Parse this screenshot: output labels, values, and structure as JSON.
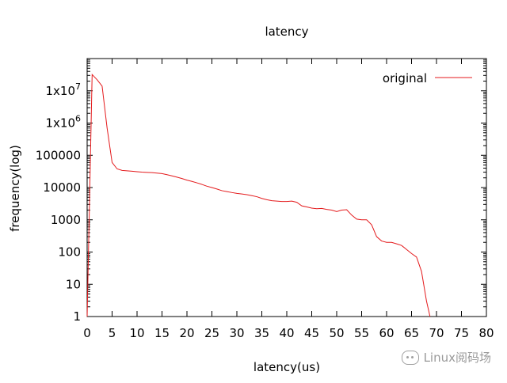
{
  "chart_data": {
    "type": "line",
    "title": "latency",
    "xlabel": "latency(us)",
    "ylabel": "frequency(log)",
    "xlim": [
      0,
      80
    ],
    "ylim": [
      1,
      100000000
    ],
    "yscale": "log",
    "grid": false,
    "legend_position": "top-right",
    "x_ticks": [
      0,
      5,
      10,
      15,
      20,
      25,
      30,
      35,
      40,
      45,
      50,
      55,
      60,
      65,
      70,
      75,
      80
    ],
    "x_tick_labels": [
      "0",
      "5",
      "10",
      "15",
      "20",
      "25",
      "30",
      "35",
      "40",
      "45",
      "50",
      "55",
      "60",
      "65",
      "70",
      "75",
      "80"
    ],
    "y_ticks": [
      1,
      10,
      100,
      1000,
      10000,
      100000,
      1000000,
      10000000
    ],
    "y_tick_labels": [
      "1",
      "10",
      "100",
      "1000",
      "10000",
      "100000",
      "1x10^6",
      "1x10^7"
    ],
    "series": [
      {
        "name": "original",
        "color": "#e41a1c",
        "points": [
          [
            0,
            1
          ],
          [
            1,
            32000000
          ],
          [
            2,
            22000000
          ],
          [
            3,
            14000000
          ],
          [
            4,
            700000
          ],
          [
            5,
            60000
          ],
          [
            6,
            38000
          ],
          [
            7,
            34000
          ],
          [
            8,
            33000
          ],
          [
            9,
            32000
          ],
          [
            10,
            31000
          ],
          [
            11,
            30000
          ],
          [
            12,
            29500
          ],
          [
            13,
            29000
          ],
          [
            14,
            28000
          ],
          [
            15,
            27000
          ],
          [
            16,
            25000
          ],
          [
            17,
            23000
          ],
          [
            18,
            21000
          ],
          [
            19,
            19000
          ],
          [
            20,
            17000
          ],
          [
            21,
            15500
          ],
          [
            22,
            14000
          ],
          [
            23,
            12500
          ],
          [
            24,
            11000
          ],
          [
            25,
            10000
          ],
          [
            26,
            9000
          ],
          [
            27,
            8000
          ],
          [
            28,
            7500
          ],
          [
            29,
            7000
          ],
          [
            30,
            6600
          ],
          [
            31,
            6300
          ],
          [
            32,
            6000
          ],
          [
            33,
            5600
          ],
          [
            34,
            5200
          ],
          [
            35,
            4600
          ],
          [
            36,
            4200
          ],
          [
            37,
            3900
          ],
          [
            38,
            3800
          ],
          [
            39,
            3700
          ],
          [
            40,
            3700
          ],
          [
            41,
            3800
          ],
          [
            42,
            3500
          ],
          [
            43,
            2700
          ],
          [
            44,
            2500
          ],
          [
            45,
            2300
          ],
          [
            46,
            2200
          ],
          [
            47,
            2250
          ],
          [
            48,
            2100
          ],
          [
            49,
            2000
          ],
          [
            50,
            1800
          ],
          [
            51,
            2000
          ],
          [
            52,
            2050
          ],
          [
            53,
            1400
          ],
          [
            54,
            1050
          ],
          [
            55,
            1000
          ],
          [
            56,
            1000
          ],
          [
            57,
            700
          ],
          [
            58,
            300
          ],
          [
            59,
            220
          ],
          [
            60,
            200
          ],
          [
            61,
            200
          ],
          [
            62,
            180
          ],
          [
            63,
            160
          ],
          [
            64,
            120
          ],
          [
            65,
            90
          ],
          [
            66,
            70
          ],
          [
            67,
            25
          ],
          [
            68,
            3
          ],
          [
            68.7,
            1
          ]
        ]
      }
    ]
  },
  "watermark": {
    "text": "Linux阅码场"
  }
}
